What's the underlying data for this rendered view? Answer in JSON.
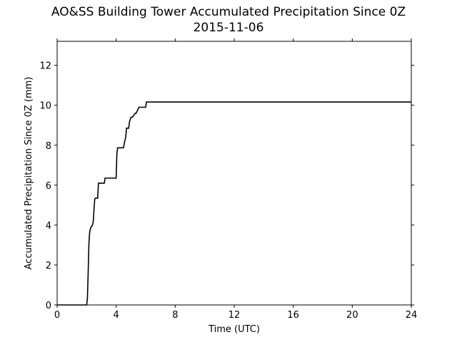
{
  "chart_data": {
    "type": "line",
    "title": "AO&SS Building Tower Accumulated Precipitation Since 0Z",
    "subtitle": "2015-11-06",
    "xlabel": "Time (UTC)",
    "ylabel": "Accumulated Precipitation Since 0Z (mm)",
    "xlim": [
      0,
      24
    ],
    "ylim": [
      0,
      13.2
    ],
    "xticks": [
      0,
      4,
      8,
      12,
      16,
      20,
      24
    ],
    "yticks": [
      0,
      2,
      4,
      6,
      8,
      10,
      12
    ],
    "grid": false,
    "line_color": "#000000",
    "series": [
      {
        "x": [
          0,
          2.0,
          2.05,
          2.1,
          2.15,
          2.2,
          2.25,
          2.3,
          2.4,
          2.45,
          2.5,
          2.55,
          2.6,
          2.65,
          2.75,
          2.8,
          2.85,
          3.2,
          3.25,
          4.0,
          4.05,
          4.1,
          4.5,
          4.55,
          4.65,
          4.7,
          4.85,
          4.9,
          5.0,
          5.1,
          5.3,
          5.35,
          5.55,
          5.6,
          6.0,
          6.05,
          24
        ],
        "y": [
          0,
          0,
          0.3,
          1.5,
          3.0,
          3.6,
          3.8,
          3.9,
          4.0,
          4.2,
          4.8,
          5.3,
          5.35,
          5.35,
          5.35,
          6.1,
          6.1,
          6.1,
          6.35,
          6.35,
          7.6,
          7.87,
          7.87,
          8.1,
          8.4,
          8.85,
          8.85,
          9.15,
          9.4,
          9.4,
          9.6,
          9.6,
          9.9,
          9.9,
          9.9,
          10.16,
          10.16
        ]
      }
    ]
  }
}
